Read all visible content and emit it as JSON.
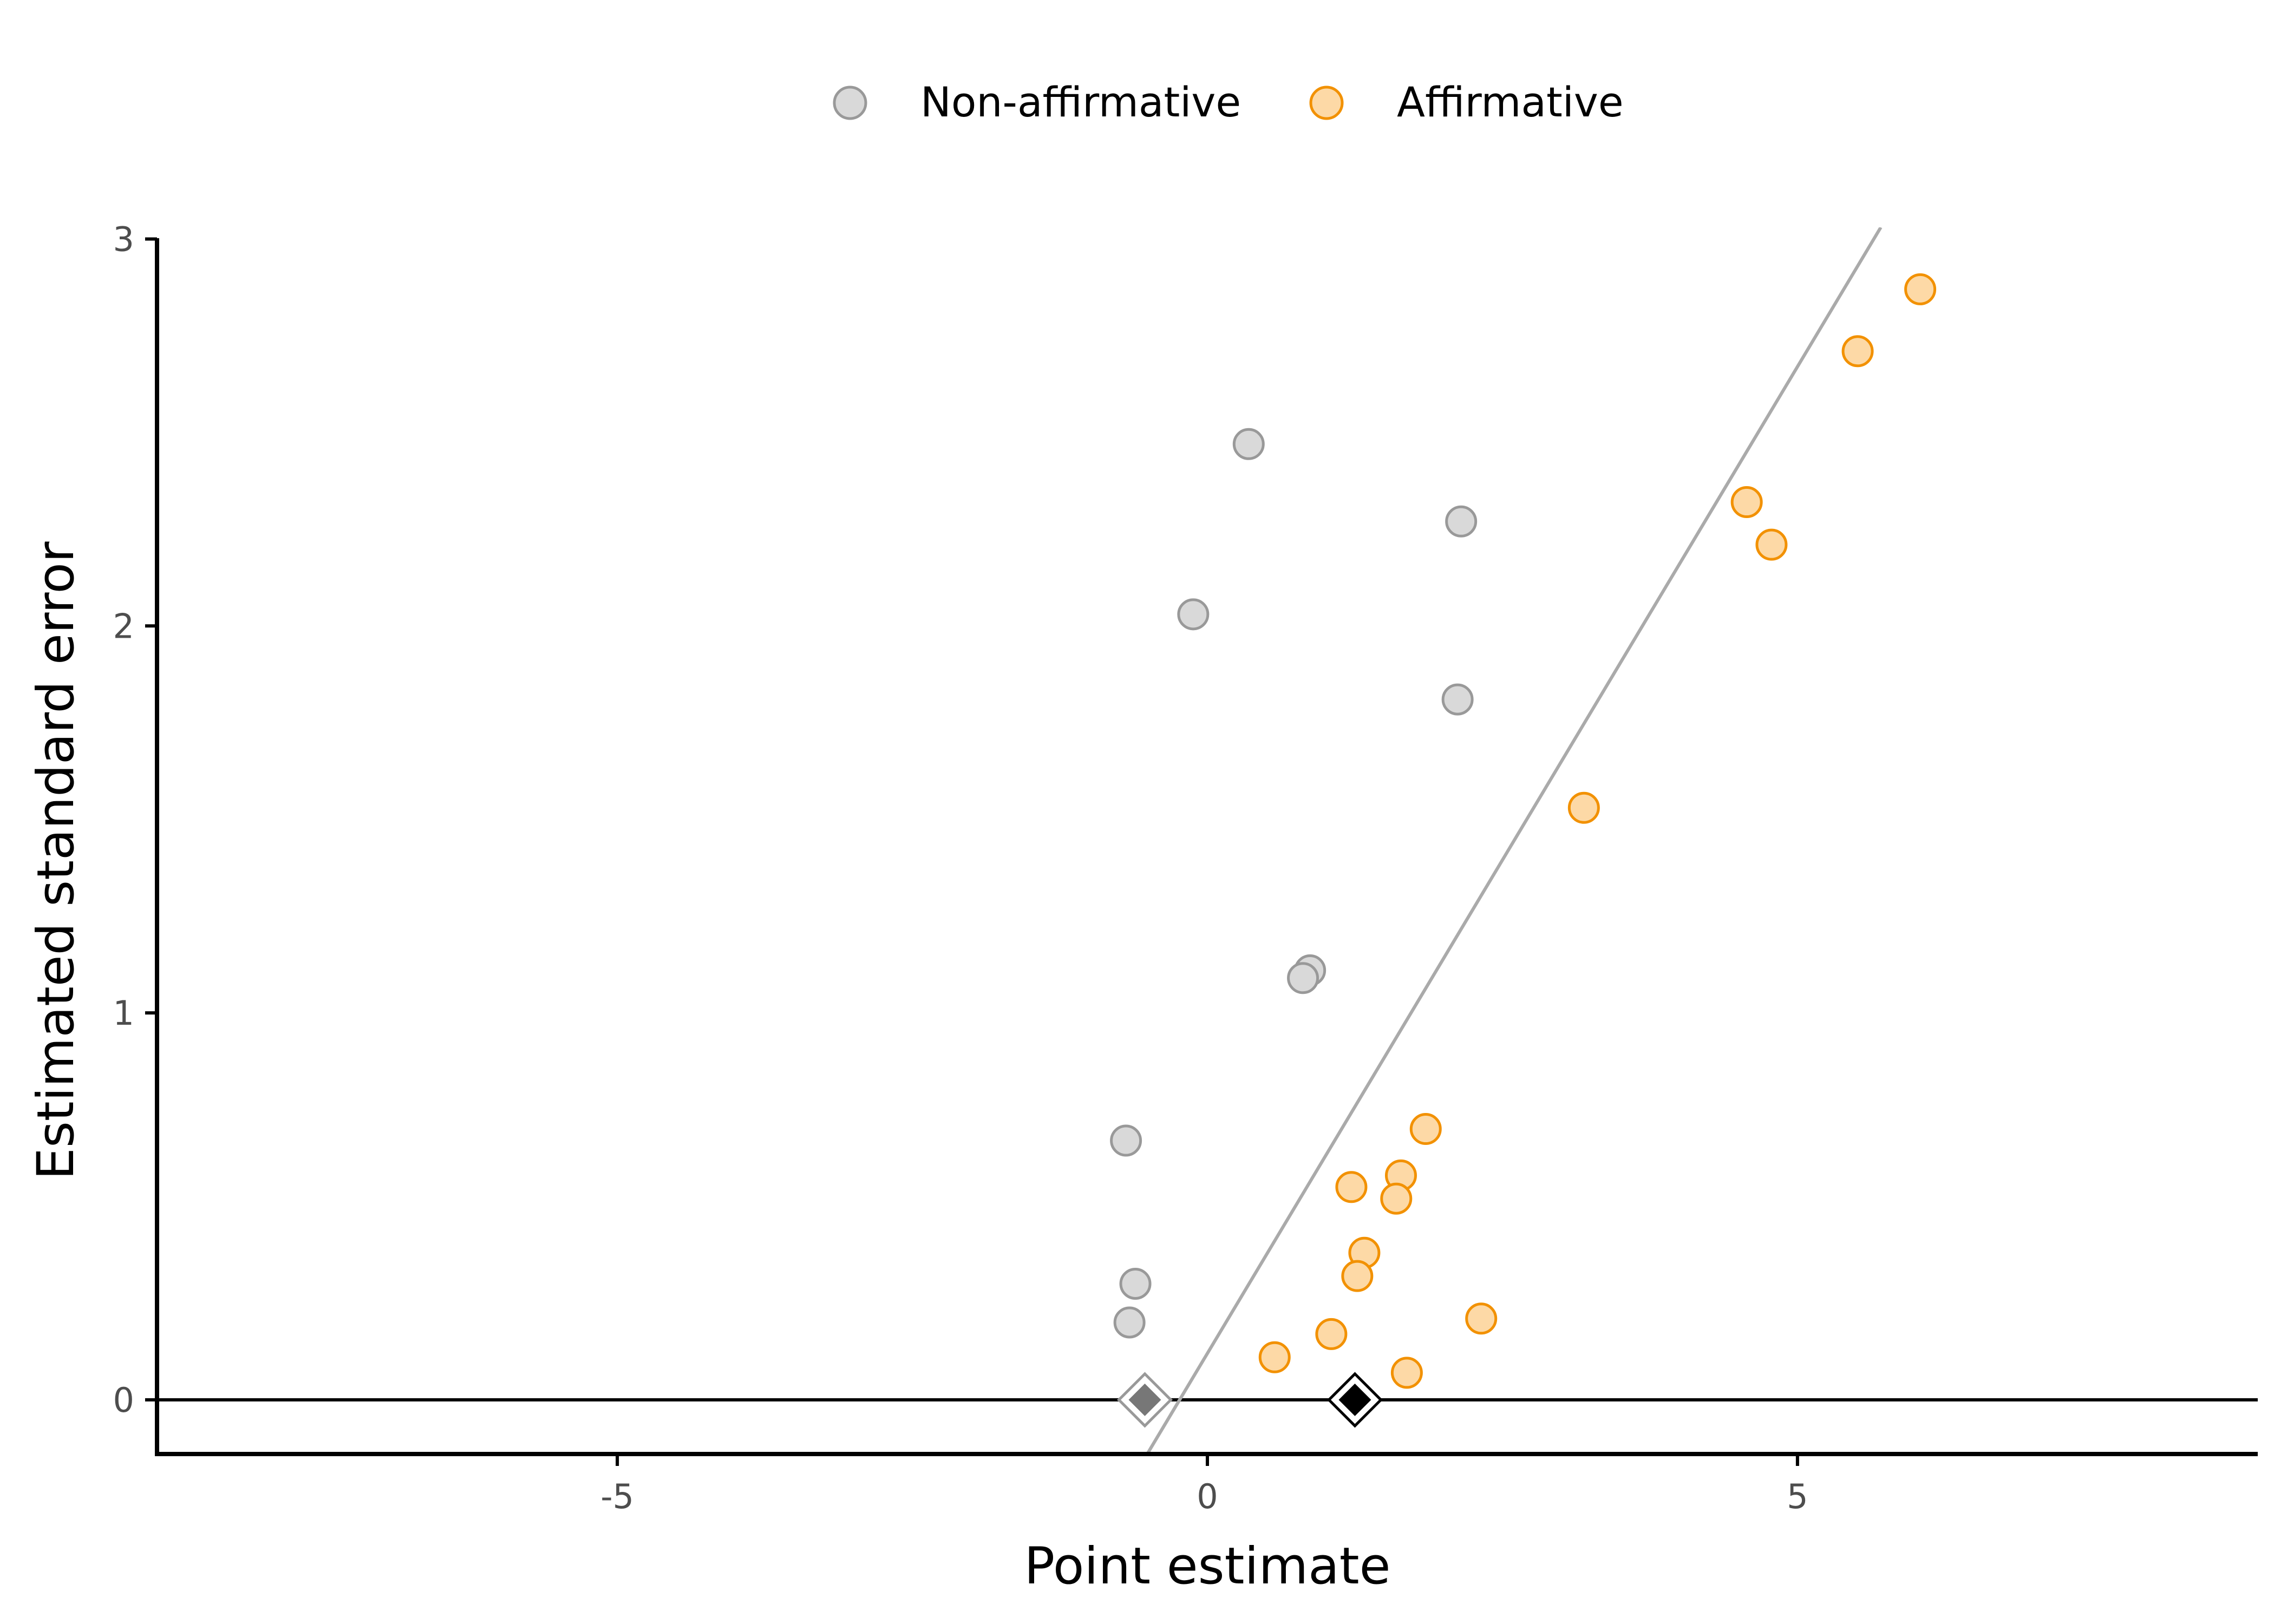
{
  "colors": {
    "non_affirmative_fill": "#d9d9d9",
    "non_affirmative_stroke": "#999999",
    "affirmative_fill": "#fdd9a6",
    "affirmative_stroke": "#f29100",
    "line": "#aaaaaa",
    "axis": "#000000"
  },
  "chart_data": {
    "type": "scatter",
    "title": "",
    "xlabel": "Point estimate",
    "ylabel": "Estimated standard error",
    "xlim": [
      -8.9,
      8.9
    ],
    "ylim": [
      -0.14,
      3.03
    ],
    "x_ticks": [
      -5,
      0,
      5
    ],
    "x_tick_labels": [
      "-5",
      "0",
      "5"
    ],
    "y_ticks": [
      0,
      1,
      2,
      3
    ],
    "y_tick_labels": [
      "0",
      "1",
      "2",
      "3"
    ],
    "grid": false,
    "legend_position": "top",
    "legend": [
      "Non-affirmative",
      "Affirmative"
    ],
    "series": [
      {
        "name": "Non-affirmative",
        "points": [
          {
            "x": 0.35,
            "y": 2.47
          },
          {
            "x": 2.15,
            "y": 2.27
          },
          {
            "x": -0.12,
            "y": 2.03
          },
          {
            "x": 2.12,
            "y": 1.81
          },
          {
            "x": 0.87,
            "y": 1.11
          },
          {
            "x": 0.81,
            "y": 1.09
          },
          {
            "x": -0.69,
            "y": 0.67
          },
          {
            "x": -0.61,
            "y": 0.3
          },
          {
            "x": -0.66,
            "y": 0.2
          }
        ]
      },
      {
        "name": "Affirmative",
        "points": [
          {
            "x": 6.04,
            "y": 2.87
          },
          {
            "x": 5.51,
            "y": 2.71
          },
          {
            "x": 4.57,
            "y": 2.32
          },
          {
            "x": 4.78,
            "y": 2.21
          },
          {
            "x": 3.19,
            "y": 1.53
          },
          {
            "x": 1.85,
            "y": 0.7
          },
          {
            "x": 1.64,
            "y": 0.58
          },
          {
            "x": 1.22,
            "y": 0.55
          },
          {
            "x": 1.6,
            "y": 0.52
          },
          {
            "x": 1.33,
            "y": 0.38
          },
          {
            "x": 1.27,
            "y": 0.32
          },
          {
            "x": 2.32,
            "y": 0.21
          },
          {
            "x": 1.05,
            "y": 0.17
          },
          {
            "x": 0.57,
            "y": 0.11
          },
          {
            "x": 1.69,
            "y": 0.07
          }
        ]
      }
    ],
    "pooled_estimates": [
      {
        "x": -0.53,
        "y": 0,
        "style": "gray"
      },
      {
        "x": 1.25,
        "y": 0,
        "style": "black"
      }
    ],
    "reference_line": {
      "slope": 0.51,
      "intercept": 0.12
    },
    "horizontal_line_y": 0
  }
}
